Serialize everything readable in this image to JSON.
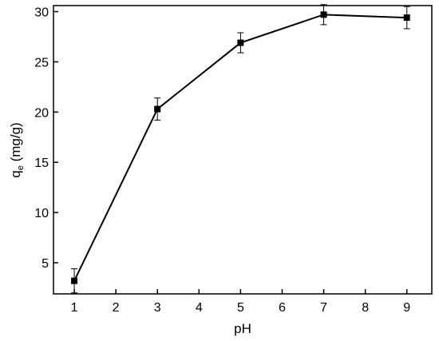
{
  "chart_data": {
    "type": "line",
    "title": "",
    "xlabel": "pH",
    "ylabel": {
      "main": "q",
      "subscript": "e",
      "unit": " (mg/g)"
    },
    "xlim": [
      0.5,
      9.6
    ],
    "ylim": [
      1.9,
      30.6
    ],
    "x_ticks": [
      1,
      2,
      3,
      4,
      5,
      6,
      7,
      8,
      9
    ],
    "y_ticks": [
      5,
      10,
      15,
      20,
      25,
      30
    ],
    "grid": false,
    "legend": "none",
    "series": [
      {
        "x": [
          1,
          3,
          5,
          7,
          9
        ],
        "y": [
          3.2,
          20.3,
          26.9,
          29.7,
          29.4
        ],
        "error": [
          1.2,
          1.1,
          1.0,
          1.0,
          1.1
        ],
        "marker": "square",
        "color": "#000000"
      }
    ]
  }
}
